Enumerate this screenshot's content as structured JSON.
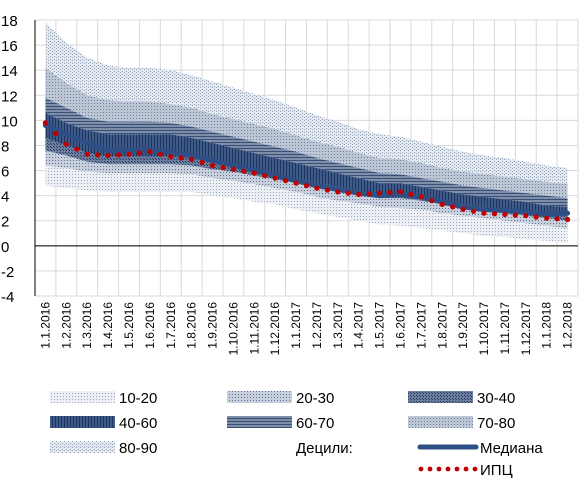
{
  "chart_data": {
    "type": "area",
    "title": "",
    "xlabel": "",
    "ylabel": "",
    "ylim": [
      -4,
      18
    ],
    "yticks": [
      18,
      16,
      14,
      12,
      10,
      8,
      6,
      4,
      2,
      0,
      -2,
      -4
    ],
    "grid": true,
    "categories": [
      "1.1.2016",
      "1.2.2016",
      "1.3.2016",
      "1.4.2016",
      "1.5.2016",
      "1.6.2016",
      "1.7.2016",
      "1.8.2016",
      "1.9.2016",
      "1.10.2016",
      "1.11.2016",
      "1.12.2016",
      "1.1.2017",
      "1.2.2017",
      "1.3.2017",
      "1.4.2017",
      "1.5.2017",
      "1.6.2017",
      "1.7.2017",
      "1.8.2017",
      "1.9.2017",
      "1.10.2017",
      "1.11.2017",
      "1.12.2017",
      "1.1.2018",
      "1.2.2018"
    ],
    "bands": [
      {
        "name": "10-20",
        "lower": [
          4.8,
          4.6,
          4.4,
          4.3,
          4.3,
          4.3,
          4.3,
          4.3,
          4.0,
          3.8,
          3.5,
          3.3,
          2.9,
          2.6,
          2.3,
          2.0,
          1.7,
          1.6,
          1.4,
          1.2,
          1.0,
          0.8,
          0.7,
          0.5,
          0.4,
          0.2
        ],
        "upper": [
          6.4,
          6.2,
          5.9,
          5.8,
          5.8,
          5.8,
          5.8,
          5.7,
          5.4,
          5.2,
          4.9,
          4.6,
          4.3,
          3.9,
          3.6,
          3.4,
          3.1,
          3.0,
          2.9,
          2.6,
          2.4,
          2.2,
          2.0,
          1.8,
          1.6,
          1.4
        ]
      },
      {
        "name": "20-30",
        "lower": [
          6.4,
          6.2,
          5.9,
          5.8,
          5.8,
          5.8,
          5.8,
          5.7,
          5.4,
          5.2,
          4.9,
          4.6,
          4.3,
          3.9,
          3.6,
          3.4,
          3.1,
          3.0,
          2.9,
          2.6,
          2.4,
          2.2,
          2.0,
          1.8,
          1.6,
          1.4
        ],
        "upper": [
          7.6,
          7.2,
          6.7,
          6.5,
          6.5,
          6.5,
          6.5,
          6.4,
          6.1,
          5.9,
          5.6,
          5.3,
          5.0,
          4.6,
          4.3,
          4.0,
          3.8,
          3.8,
          3.6,
          3.3,
          3.0,
          2.8,
          2.6,
          2.4,
          2.2,
          2.0
        ]
      },
      {
        "name": "30-40",
        "lower": [
          7.6,
          7.2,
          6.7,
          6.5,
          6.5,
          6.5,
          6.5,
          6.4,
          6.1,
          5.9,
          5.6,
          5.3,
          5.0,
          4.6,
          4.3,
          4.0,
          3.8,
          3.8,
          3.6,
          3.3,
          3.0,
          2.8,
          2.6,
          2.4,
          2.2,
          2.0
        ],
        "upper": [
          8.6,
          8.0,
          7.4,
          7.1,
          7.1,
          7.1,
          7.1,
          7.0,
          6.6,
          6.3,
          6.0,
          5.7,
          5.4,
          5.0,
          4.7,
          4.4,
          4.1,
          4.2,
          3.9,
          3.6,
          3.3,
          3.1,
          2.9,
          2.8,
          2.5,
          2.4
        ]
      },
      {
        "name": "40-60",
        "lower": [
          8.6,
          8.0,
          7.4,
          7.1,
          7.1,
          7.1,
          7.1,
          7.0,
          6.6,
          6.3,
          6.0,
          5.7,
          5.4,
          5.0,
          4.7,
          4.4,
          4.1,
          4.2,
          3.9,
          3.6,
          3.3,
          3.1,
          2.9,
          2.8,
          2.5,
          2.4
        ],
        "upper": [
          10.6,
          9.8,
          9.2,
          8.9,
          8.9,
          8.9,
          8.9,
          8.6,
          8.2,
          7.8,
          7.4,
          7.0,
          6.6,
          6.2,
          5.8,
          5.4,
          5.0,
          5.0,
          4.7,
          4.4,
          4.1,
          3.9,
          3.7,
          3.5,
          3.2,
          3.1
        ]
      },
      {
        "name": "60-70",
        "lower": [
          10.6,
          9.8,
          9.2,
          8.9,
          8.9,
          8.9,
          8.9,
          8.6,
          8.2,
          7.8,
          7.4,
          7.0,
          6.6,
          6.2,
          5.8,
          5.4,
          5.0,
          5.0,
          4.7,
          4.4,
          4.1,
          3.9,
          3.7,
          3.5,
          3.2,
          3.1
        ],
        "upper": [
          11.8,
          11.0,
          10.2,
          9.9,
          9.9,
          9.9,
          9.8,
          9.5,
          9.1,
          8.7,
          8.3,
          7.9,
          7.5,
          7.0,
          6.6,
          6.2,
          5.8,
          5.7,
          5.4,
          5.1,
          4.8,
          4.6,
          4.4,
          4.2,
          4.0,
          3.8
        ]
      },
      {
        "name": "70-80",
        "lower": [
          11.8,
          11.0,
          10.2,
          9.9,
          9.9,
          9.9,
          9.8,
          9.5,
          9.1,
          8.7,
          8.3,
          7.9,
          7.5,
          7.0,
          6.6,
          6.2,
          5.8,
          5.7,
          5.4,
          5.1,
          4.8,
          4.6,
          4.4,
          4.2,
          4.0,
          3.8
        ],
        "upper": [
          14.2,
          13.0,
          12.0,
          11.6,
          11.5,
          11.5,
          11.3,
          11.0,
          10.5,
          10.1,
          9.7,
          9.3,
          8.8,
          8.3,
          7.9,
          7.4,
          7.0,
          6.9,
          6.6,
          6.2,
          5.9,
          5.7,
          5.5,
          5.3,
          5.1,
          4.9
        ]
      },
      {
        "name": "80-90",
        "lower": [
          14.2,
          13.0,
          12.0,
          11.6,
          11.5,
          11.5,
          11.3,
          11.0,
          10.5,
          10.1,
          9.7,
          9.3,
          8.8,
          8.3,
          7.9,
          7.4,
          7.0,
          6.9,
          6.6,
          6.2,
          5.9,
          5.7,
          5.5,
          5.3,
          5.1,
          4.9
        ],
        "upper": [
          17.8,
          16.2,
          15.0,
          14.4,
          14.2,
          14.2,
          14.0,
          13.6,
          13.1,
          12.6,
          12.1,
          11.6,
          11.0,
          10.4,
          9.9,
          9.3,
          8.9,
          8.7,
          8.3,
          7.9,
          7.5,
          7.2,
          7.0,
          6.7,
          6.4,
          6.2
        ]
      }
    ],
    "series": [
      {
        "name": "Медиана",
        "values": [
          9.6,
          8.9,
          8.2,
          7.6,
          7.6,
          7.6,
          7.5,
          7.2,
          6.8,
          6.4,
          6.0,
          5.6,
          5.2,
          4.8,
          4.5,
          4.2,
          4.0,
          4.1,
          3.9,
          3.5,
          3.1,
          2.9,
          2.8,
          2.7,
          2.5,
          2.6
        ]
      },
      {
        "name": "ИПЦ",
        "values": [
          9.8,
          8.1,
          7.3,
          7.2,
          7.3,
          7.5,
          7.1,
          6.9,
          6.4,
          6.1,
          5.8,
          5.4,
          5.0,
          4.6,
          4.3,
          4.1,
          4.2,
          4.3,
          3.9,
          3.3,
          2.9,
          2.6,
          2.5,
          2.4,
          2.2,
          2.1
        ]
      }
    ],
    "legend": {
      "position": "bottom",
      "items": [
        "10-20",
        "20-30",
        "30-40",
        "40-60",
        "60-70",
        "70-80",
        "80-90",
        "Децили:",
        "Медиана",
        "ИПЦ"
      ]
    },
    "colors": {
      "median": "#2e4f86",
      "cpi": "#c00000",
      "band_fill": "#dfe5ef",
      "band_40_60": "#3a5785",
      "band_30_70": "#7888a4",
      "band_20_80": "#a9b5c8",
      "band_10_90": "#cdd5e1"
    }
  }
}
